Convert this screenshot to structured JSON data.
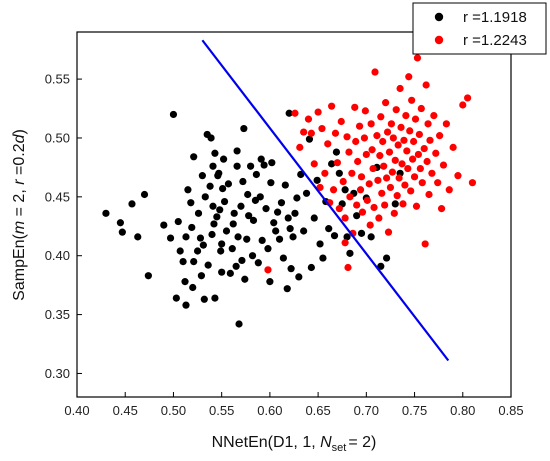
{
  "chart_data": {
    "type": "scatter",
    "xlabel": "NNetEn(D1, 1, N_set = 2)",
    "xlabel_parts": {
      "main": "NNetEn(D1, 1, ",
      "var": "N",
      "sub": "set",
      "tail": "= 2)"
    },
    "ylabel": "SampEn(m = 2, r =0.2d)",
    "ylabel_parts": {
      "a": "SampEn(",
      "m": "m",
      "b": " = 2, ",
      "r": "r",
      "c": " =0.2",
      "d": "d",
      "e": ")"
    },
    "xlim": [
      0.4,
      0.85
    ],
    "ylim": [
      0.28,
      0.59
    ],
    "xticks": [
      "0.40",
      "0.45",
      "0.50",
      "0.55",
      "0.60",
      "0.65",
      "0.70",
      "0.75",
      "0.80",
      "0.85"
    ],
    "xtick_values": [
      0.4,
      0.45,
      0.5,
      0.55,
      0.6,
      0.65,
      0.7,
      0.75,
      0.8,
      0.85
    ],
    "yticks": [
      "0.30",
      "0.35",
      "0.40",
      "0.45",
      "0.50",
      "0.55"
    ],
    "ytick_values": [
      0.3,
      0.35,
      0.4,
      0.45,
      0.5,
      0.55
    ],
    "grid": false,
    "legend_position": "top-right",
    "separator_line": {
      "color": "#0000ee",
      "points": [
        [
          0.53,
          0.583
        ],
        [
          0.785,
          0.311
        ]
      ]
    },
    "series": [
      {
        "name": "r =1.1918",
        "color": "#000000",
        "points": [
          [
            0.43,
            0.436
          ],
          [
            0.445,
            0.428
          ],
          [
            0.447,
            0.42
          ],
          [
            0.457,
            0.444
          ],
          [
            0.463,
            0.416
          ],
          [
            0.47,
            0.452
          ],
          [
            0.474,
            0.383
          ],
          [
            0.49,
            0.426
          ],
          [
            0.497,
            0.415
          ],
          [
            0.5,
            0.52
          ],
          [
            0.503,
            0.364
          ],
          [
            0.505,
            0.429
          ],
          [
            0.507,
            0.404
          ],
          [
            0.51,
            0.395
          ],
          [
            0.512,
            0.378
          ],
          [
            0.513,
            0.358
          ],
          [
            0.513,
            0.416
          ],
          [
            0.515,
            0.456
          ],
          [
            0.518,
            0.445
          ],
          [
            0.519,
            0.424
          ],
          [
            0.52,
            0.373
          ],
          [
            0.521,
            0.484
          ],
          [
            0.521,
            0.395
          ],
          [
            0.525,
            0.404
          ],
          [
            0.526,
            0.436
          ],
          [
            0.528,
            0.415
          ],
          [
            0.529,
            0.383
          ],
          [
            0.53,
            0.468
          ],
          [
            0.531,
            0.409
          ],
          [
            0.532,
            0.363
          ],
          [
            0.533,
            0.45
          ],
          [
            0.535,
            0.503
          ],
          [
            0.536,
            0.392
          ],
          [
            0.538,
            0.459
          ],
          [
            0.539,
            0.5
          ],
          [
            0.54,
            0.418
          ],
          [
            0.541,
            0.476
          ],
          [
            0.541,
            0.442
          ],
          [
            0.542,
            0.427
          ],
          [
            0.543,
            0.487
          ],
          [
            0.543,
            0.364
          ],
          [
            0.545,
            0.433
          ],
          [
            0.546,
            0.468
          ],
          [
            0.547,
            0.47
          ],
          [
            0.548,
            0.439
          ],
          [
            0.549,
            0.404
          ],
          [
            0.55,
            0.386
          ],
          [
            0.55,
            0.41
          ],
          [
            0.551,
            0.457
          ],
          [
            0.552,
            0.482
          ],
          [
            0.553,
            0.446
          ],
          [
            0.555,
            0.421
          ],
          [
            0.557,
            0.461
          ],
          [
            0.559,
            0.385
          ],
          [
            0.561,
            0.406
          ],
          [
            0.562,
            0.427
          ],
          [
            0.563,
            0.436
          ],
          [
            0.565,
            0.391
          ],
          [
            0.566,
            0.489
          ],
          [
            0.566,
            0.476
          ],
          [
            0.567,
            0.416
          ],
          [
            0.568,
            0.342
          ],
          [
            0.57,
            0.442
          ],
          [
            0.571,
            0.396
          ],
          [
            0.572,
            0.463
          ],
          [
            0.573,
            0.508
          ],
          [
            0.574,
            0.38
          ],
          [
            0.576,
            0.414
          ],
          [
            0.577,
            0.452
          ],
          [
            0.578,
            0.434
          ],
          [
            0.58,
            0.476
          ],
          [
            0.582,
            0.4
          ],
          [
            0.583,
            0.43
          ],
          [
            0.585,
            0.447
          ],
          [
            0.586,
            0.469
          ],
          [
            0.588,
            0.394
          ],
          [
            0.59,
            0.45
          ],
          [
            0.591,
            0.482
          ],
          [
            0.592,
            0.413
          ],
          [
            0.594,
            0.477
          ],
          [
            0.596,
            0.44
          ],
          [
            0.598,
            0.406
          ],
          [
            0.6,
            0.378
          ],
          [
            0.601,
            0.462
          ],
          [
            0.602,
            0.479
          ],
          [
            0.604,
            0.428
          ],
          [
            0.606,
            0.421
          ],
          [
            0.608,
            0.437
          ],
          [
            0.61,
            0.414
          ],
          [
            0.612,
            0.445
          ],
          [
            0.614,
            0.398
          ],
          [
            0.616,
            0.46
          ],
          [
            0.618,
            0.372
          ],
          [
            0.619,
            0.432
          ],
          [
            0.62,
            0.521
          ],
          [
            0.621,
            0.423
          ],
          [
            0.622,
            0.389
          ],
          [
            0.624,
            0.416
          ],
          [
            0.626,
            0.436
          ],
          [
            0.628,
            0.449
          ],
          [
            0.63,
            0.382
          ],
          [
            0.632,
            0.469
          ],
          [
            0.635,
            0.421
          ],
          [
            0.638,
            0.453
          ],
          [
            0.641,
            0.499
          ],
          [
            0.643,
            0.39
          ],
          [
            0.646,
            0.432
          ],
          [
            0.649,
            0.464
          ],
          [
            0.652,
            0.41
          ],
          [
            0.655,
            0.398
          ],
          [
            0.658,
            0.446
          ],
          [
            0.661,
            0.423
          ],
          [
            0.664,
            0.478
          ],
          [
            0.667,
            0.417
          ],
          [
            0.669,
            0.488
          ],
          [
            0.672,
            0.47
          ],
          [
            0.675,
            0.444
          ],
          [
            0.678,
            0.456
          ],
          [
            0.68,
            0.416
          ],
          [
            0.683,
            0.402
          ],
          [
            0.687,
            0.453
          ],
          [
            0.69,
            0.434
          ],
          [
            0.695,
            0.419
          ],
          [
            0.7,
            0.449
          ],
          [
            0.705,
            0.416
          ],
          [
            0.711,
            0.475
          ],
          [
            0.715,
            0.391
          ],
          [
            0.721,
            0.398
          ],
          [
            0.73,
            0.444
          ],
          [
            0.735,
            0.47
          ]
        ]
      },
      {
        "name": "r =1.2243",
        "color": "#ff0000",
        "points": [
          [
            0.598,
            0.388
          ],
          [
            0.626,
            0.521
          ],
          [
            0.631,
            0.492
          ],
          [
            0.635,
            0.505
          ],
          [
            0.64,
            0.516
          ],
          [
            0.643,
            0.504
          ],
          [
            0.646,
            0.478
          ],
          [
            0.65,
            0.522
          ],
          [
            0.652,
            0.458
          ],
          [
            0.654,
            0.508
          ],
          [
            0.657,
            0.47
          ],
          [
            0.66,
            0.495
          ],
          [
            0.662,
            0.445
          ],
          [
            0.664,
            0.527
          ],
          [
            0.666,
            0.456
          ],
          [
            0.668,
            0.504
          ],
          [
            0.67,
            0.479
          ],
          [
            0.672,
            0.44
          ],
          [
            0.674,
            0.514
          ],
          [
            0.676,
            0.463
          ],
          [
            0.678,
            0.432
          ],
          [
            0.678,
            0.411
          ],
          [
            0.68,
            0.501
          ],
          [
            0.681,
            0.39
          ],
          [
            0.682,
            0.488
          ],
          [
            0.683,
            0.45
          ],
          [
            0.685,
            0.47
          ],
          [
            0.686,
            0.419
          ],
          [
            0.688,
            0.526
          ],
          [
            0.689,
            0.497
          ],
          [
            0.69,
            0.443
          ],
          [
            0.691,
            0.48
          ],
          [
            0.693,
            0.51
          ],
          [
            0.694,
            0.456
          ],
          [
            0.695,
            0.467
          ],
          [
            0.696,
            0.437
          ],
          [
            0.698,
            0.5
          ],
          [
            0.699,
            0.523
          ],
          [
            0.7,
            0.486
          ],
          [
            0.701,
            0.447
          ],
          [
            0.703,
            0.461
          ],
          [
            0.704,
            0.426
          ],
          [
            0.705,
            0.512
          ],
          [
            0.706,
            0.49
          ],
          [
            0.707,
            0.474
          ],
          [
            0.708,
            0.441
          ],
          [
            0.709,
            0.556
          ],
          [
            0.711,
            0.502
          ],
          [
            0.712,
            0.464
          ],
          [
            0.713,
            0.432
          ],
          [
            0.714,
            0.485
          ],
          [
            0.715,
            0.518
          ],
          [
            0.716,
            0.453
          ],
          [
            0.717,
            0.497
          ],
          [
            0.718,
            0.476
          ],
          [
            0.719,
            0.443
          ],
          [
            0.72,
            0.53
          ],
          [
            0.721,
            0.466
          ],
          [
            0.722,
            0.505
          ],
          [
            0.723,
            0.42
          ],
          [
            0.724,
            0.488
          ],
          [
            0.725,
            0.458
          ],
          [
            0.726,
            0.512
          ],
          [
            0.727,
            0.471
          ],
          [
            0.728,
            0.5
          ],
          [
            0.729,
            0.436
          ],
          [
            0.73,
            0.481
          ],
          [
            0.731,
            0.524
          ],
          [
            0.732,
            0.451
          ],
          [
            0.733,
            0.494
          ],
          [
            0.734,
            0.466
          ],
          [
            0.735,
            0.542
          ],
          [
            0.736,
            0.509
          ],
          [
            0.737,
            0.478
          ],
          [
            0.738,
            0.444
          ],
          [
            0.739,
            0.498
          ],
          [
            0.74,
            0.46
          ],
          [
            0.741,
            0.519
          ],
          [
            0.742,
            0.489
          ],
          [
            0.743,
            0.474
          ],
          [
            0.744,
            0.552
          ],
          [
            0.745,
            0.506
          ],
          [
            0.746,
            0.455
          ],
          [
            0.747,
            0.532
          ],
          [
            0.748,
            0.482
          ],
          [
            0.749,
            0.497
          ],
          [
            0.75,
            0.467
          ],
          [
            0.751,
            0.516
          ],
          [
            0.752,
            0.442
          ],
          [
            0.753,
            0.568
          ],
          [
            0.754,
            0.486
          ],
          [
            0.755,
            0.503
          ],
          [
            0.756,
            0.474
          ],
          [
            0.757,
            0.525
          ],
          [
            0.758,
            0.462
          ],
          [
            0.76,
            0.491
          ],
          [
            0.761,
            0.41
          ],
          [
            0.762,
            0.545
          ],
          [
            0.763,
            0.48
          ],
          [
            0.764,
            0.512
          ],
          [
            0.765,
            0.452
          ],
          [
            0.766,
            0.498
          ],
          [
            0.768,
            0.47
          ],
          [
            0.77,
            0.519
          ],
          [
            0.772,
            0.487
          ],
          [
            0.774,
            0.462
          ],
          [
            0.776,
            0.502
          ],
          [
            0.778,
            0.44
          ],
          [
            0.78,
            0.477
          ],
          [
            0.783,
            0.512
          ],
          [
            0.786,
            0.456
          ],
          [
            0.79,
            0.492
          ],
          [
            0.795,
            0.468
          ],
          [
            0.8,
            0.528
          ],
          [
            0.805,
            0.534
          ],
          [
            0.81,
            0.462
          ]
        ]
      }
    ]
  }
}
